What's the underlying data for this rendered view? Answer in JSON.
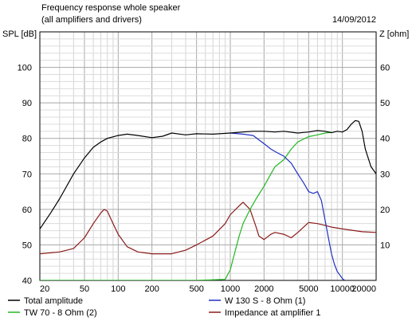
{
  "chart_data": {
    "type": "line",
    "title": "Frequency response whole speaker",
    "subtitle": "(all amplifiers and drivers)",
    "date": "14/09/2012",
    "ylabel_left": "SPL [dB]",
    "ylabel_right": "Z [ohm]",
    "x_scale": "log",
    "xlim": [
      20,
      20000
    ],
    "ylim_left": [
      40,
      110
    ],
    "ylim_right": [
      0,
      70
    ],
    "x_ticks": [
      20,
      50,
      100,
      200,
      500,
      1000,
      2000,
      5000,
      10000,
      20000
    ],
    "x_tick_labels": [
      "20",
      "50",
      "100",
      "200",
      "500",
      "1000",
      "2000",
      "5000",
      "10000",
      "20000"
    ],
    "y_ticks_left": [
      40,
      50,
      60,
      70,
      80,
      90,
      100
    ],
    "y_tick_labels_left": [
      "40",
      "50",
      "60",
      "70",
      "80",
      "90",
      "100"
    ],
    "y_ticks_right": [
      10,
      20,
      30,
      40,
      50,
      60
    ],
    "y_tick_labels_right": [
      "10",
      "20",
      "30",
      "40",
      "50",
      "60"
    ],
    "grid": true,
    "legend_position": "bottom",
    "series": [
      {
        "name": "Total amplitude",
        "color": "#000000",
        "axis": "left",
        "x": [
          20,
          25,
          30,
          40,
          50,
          60,
          70,
          80,
          100,
          120,
          150,
          200,
          250,
          300,
          400,
          500,
          700,
          1000,
          1300,
          1600,
          2000,
          2500,
          3000,
          4000,
          5000,
          6000,
          7000,
          8000,
          9000,
          10000,
          11000,
          12000,
          13000,
          14000,
          15000,
          16000,
          18000,
          20000
        ],
        "y": [
          54.5,
          59,
          63,
          70,
          74.5,
          77.5,
          79,
          80,
          80.8,
          81.2,
          80.8,
          80.2,
          80.6,
          81.5,
          81,
          81.3,
          81.2,
          81.5,
          81.8,
          82,
          82,
          81.8,
          82,
          81.5,
          81.8,
          82.2,
          82,
          81.6,
          82,
          81.8,
          82.5,
          84,
          85,
          84.8,
          82,
          77,
          72,
          70
        ]
      },
      {
        "name": "W 130 S - 8 Ohm (1)",
        "color": "#1f2fc4",
        "axis": "left",
        "x": [
          1000,
          1300,
          1600,
          2000,
          2300,
          2600,
          3000,
          3500,
          4000,
          4500,
          5000,
          5500,
          6000,
          6500,
          7000,
          7500,
          8000,
          8500,
          9000,
          9500,
          10000,
          10500
        ],
        "y": [
          81.5,
          81.2,
          80.8,
          78.5,
          77,
          76,
          75,
          73,
          70,
          67.5,
          65,
          64.5,
          65,
          62.5,
          57,
          52,
          47.5,
          44.5,
          42.5,
          41.5,
          40.5,
          40
        ]
      },
      {
        "name": "TW 70 - 8 Ohm (2)",
        "color": "#22b822",
        "axis": "left",
        "x": [
          20,
          500,
          900,
          1000,
          1100,
          1200,
          1300,
          1500,
          1700,
          2000,
          2300,
          2500,
          3000,
          3500,
          4000,
          5000,
          6000,
          7000,
          8000
        ],
        "y": [
          40,
          40,
          40.3,
          43,
          48,
          52.5,
          56,
          60,
          63,
          66.5,
          70,
          72,
          74,
          77,
          79,
          80.5,
          81,
          81.5,
          81.7
        ]
      },
      {
        "name": "Impedance at amplifier 1",
        "color": "#8b1a1a",
        "axis": "right",
        "x": [
          20,
          30,
          40,
          50,
          60,
          70,
          75,
          80,
          90,
          100,
          120,
          150,
          200,
          300,
          400,
          500,
          700,
          900,
          1000,
          1200,
          1300,
          1500,
          1700,
          1800,
          2000,
          2300,
          2500,
          3000,
          3500,
          4000,
          5000,
          6000,
          7000,
          8000,
          10000,
          15000,
          20000
        ],
        "y": [
          7.5,
          8,
          9,
          12,
          16,
          19,
          20,
          19.5,
          16,
          13,
          9.5,
          8,
          7.5,
          7.5,
          8.5,
          10,
          12.5,
          16,
          18.5,
          21,
          22,
          20,
          15,
          12.5,
          11.5,
          13,
          13.5,
          13,
          12,
          13.5,
          16.3,
          16,
          15.5,
          15,
          14.5,
          13.7,
          13.5
        ]
      }
    ]
  }
}
